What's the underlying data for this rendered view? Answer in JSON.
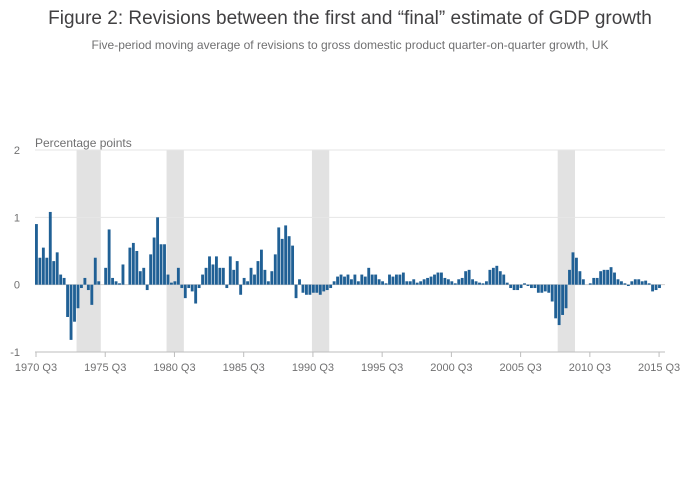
{
  "title": "Figure 2: Revisions between the first and “final” estimate of GDP growth",
  "subtitle": "Five-period moving average of revisions to gross domestic product quarter-on-quarter growth, UK",
  "colors": {
    "bar": "#206095",
    "recession": "#e2e2e2",
    "grid": "#e6e6e6",
    "axis": "#bdbdbd",
    "text": "#707071"
  },
  "chart_data": {
    "type": "bar",
    "ylabel": "Percentage points",
    "ylim": [
      -1,
      2
    ],
    "yticks": [
      -1,
      0,
      1,
      2
    ],
    "xlabels": [
      "1970 Q3",
      "1975 Q3",
      "1980 Q3",
      "1985 Q3",
      "1990 Q3",
      "1995 Q3",
      "2000 Q3",
      "2005 Q3",
      "2010 Q3",
      "2015 Q3"
    ],
    "start": "1970 Q3",
    "end": "2015 Q4",
    "recessions": [
      {
        "start": "1973 Q3",
        "end": "1975 Q1"
      },
      {
        "start": "1980 Q1",
        "end": "1981 Q1"
      },
      {
        "start": "1990 Q3",
        "end": "1991 Q3"
      },
      {
        "start": "2008 Q2",
        "end": "2009 Q2"
      }
    ],
    "values": [
      0.9,
      0.4,
      0.55,
      0.4,
      1.08,
      0.35,
      0.48,
      0.15,
      0.1,
      -0.48,
      -0.82,
      -0.55,
      -0.35,
      -0.05,
      0.1,
      -0.08,
      -0.3,
      0.4,
      0.05,
      0.0,
      0.25,
      0.82,
      0.1,
      0.05,
      0.02,
      0.3,
      0.0,
      0.55,
      0.62,
      0.5,
      0.2,
      0.25,
      -0.08,
      0.45,
      0.7,
      1.0,
      0.6,
      0.6,
      0.15,
      0.03,
      0.05,
      0.25,
      -0.05,
      -0.2,
      -0.05,
      -0.1,
      -0.28,
      -0.05,
      0.15,
      0.25,
      0.42,
      0.3,
      0.42,
      0.25,
      0.25,
      -0.05,
      0.42,
      0.22,
      0.35,
      -0.15,
      0.1,
      0.05,
      0.25,
      0.15,
      0.35,
      0.52,
      0.22,
      0.05,
      0.2,
      0.45,
      0.85,
      0.68,
      0.88,
      0.72,
      0.58,
      -0.2,
      0.08,
      -0.12,
      -0.15,
      -0.15,
      -0.12,
      -0.12,
      -0.15,
      -0.1,
      -0.08,
      -0.05,
      0.05,
      0.12,
      0.15,
      0.12,
      0.15,
      0.08,
      0.15,
      0.05,
      0.15,
      0.12,
      0.25,
      0.15,
      0.15,
      0.08,
      0.05,
      0.02,
      0.15,
      0.12,
      0.15,
      0.15,
      0.18,
      0.05,
      0.05,
      0.08,
      0.03,
      0.05,
      0.08,
      0.1,
      0.12,
      0.15,
      0.18,
      0.18,
      0.1,
      0.08,
      0.05,
      0.02,
      0.08,
      0.1,
      0.2,
      0.22,
      0.08,
      0.05,
      0.03,
      0.02,
      0.05,
      0.22,
      0.25,
      0.28,
      0.2,
      0.15,
      0.03,
      -0.05,
      -0.08,
      -0.08,
      -0.05,
      0.02,
      -0.02,
      -0.05,
      -0.05,
      -0.12,
      -0.12,
      -0.1,
      -0.12,
      -0.25,
      -0.5,
      -0.6,
      -0.45,
      -0.35,
      0.22,
      0.48,
      0.4,
      0.2,
      0.08,
      0.0,
      0.02,
      0.1,
      0.1,
      0.2,
      0.22,
      0.22,
      0.26,
      0.18,
      0.08,
      0.05,
      0.02,
      -0.02,
      0.05,
      0.08,
      0.08,
      0.05,
      0.06,
      0.02,
      -0.1,
      -0.08,
      -0.05
    ]
  }
}
